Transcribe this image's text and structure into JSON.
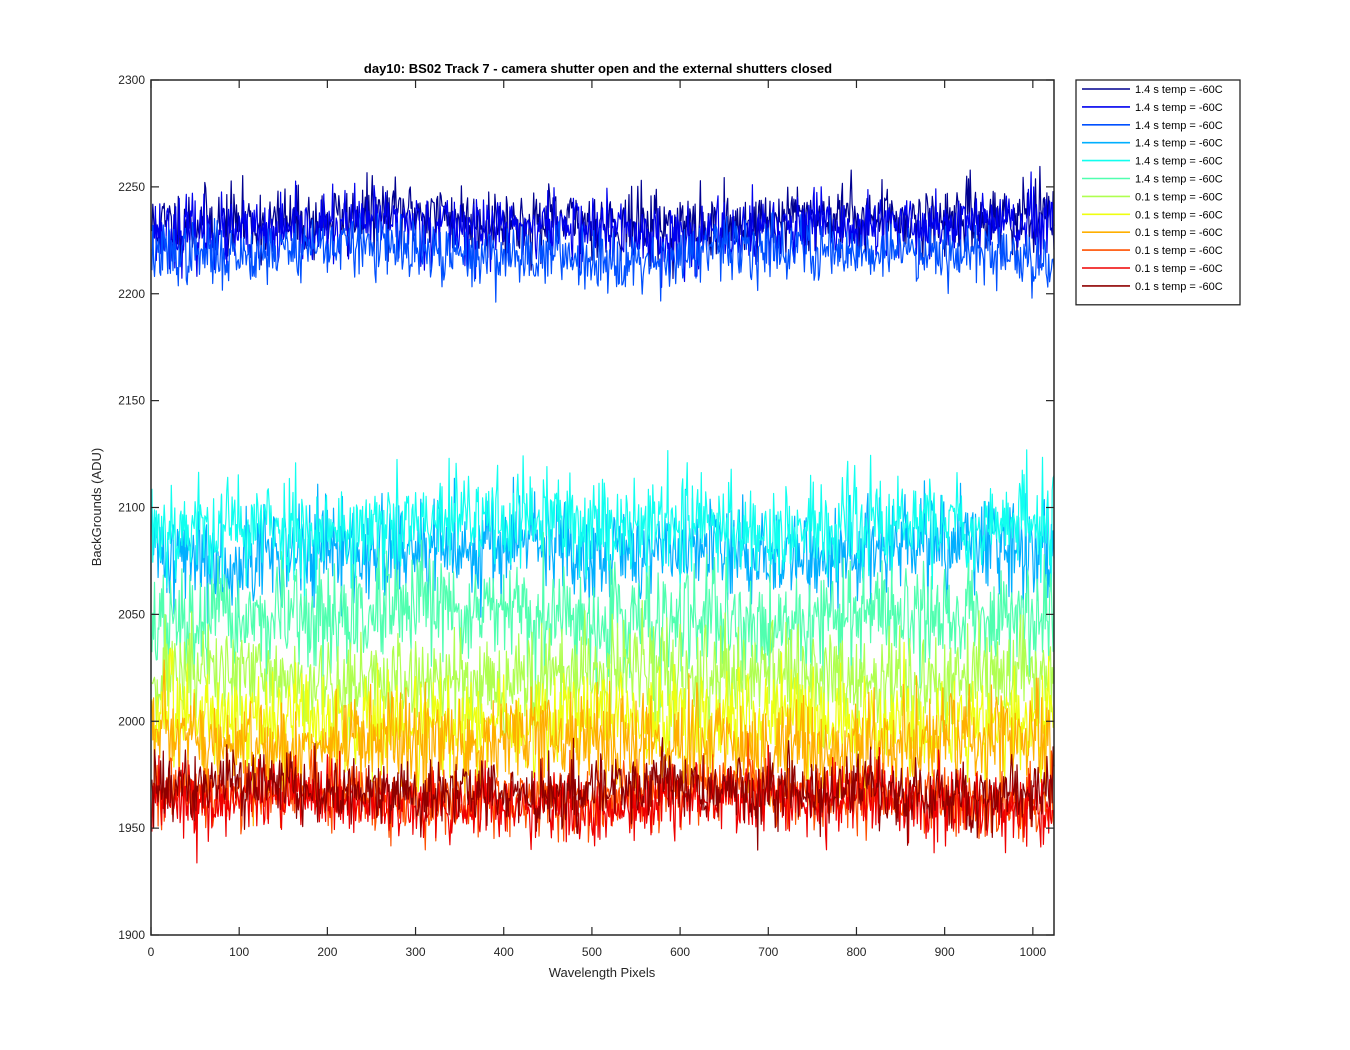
{
  "chart_data": {
    "type": "line",
    "title": "day10: BS02  Track 7 - camera shutter open and the external shutters closed",
    "xlabel": "Wavelength Pixels",
    "ylabel": "BackGrounds (ADU)",
    "xlim": [
      0,
      1024
    ],
    "ylim": [
      1900,
      2300
    ],
    "xticks": [
      0,
      100,
      200,
      300,
      400,
      500,
      600,
      700,
      800,
      900,
      1000
    ],
    "yticks": [
      1900,
      1950,
      2000,
      2050,
      2100,
      2150,
      2200,
      2250,
      2300
    ],
    "grid": false,
    "legend_position": "outside-top-right",
    "x": {
      "start": 1,
      "end": 1024,
      "step": 1
    },
    "series": [
      {
        "name": "1.4 s temp = -60C",
        "color": "#00008f",
        "mean": 2234,
        "noise": 8,
        "seed": 11
      },
      {
        "name": "1.4 s temp = -60C",
        "color": "#0000ef",
        "mean": 2230,
        "noise": 8,
        "seed": 23
      },
      {
        "name": "1.4 s temp = -60C",
        "color": "#0050ff",
        "mean": 2219,
        "noise": 7,
        "seed": 37
      },
      {
        "name": "1.4 s temp = -60C",
        "color": "#00afff",
        "mean": 2080,
        "noise": 12,
        "seed": 41
      },
      {
        "name": "1.4 s temp = -60C",
        "color": "#10ffef",
        "mean": 2092,
        "noise": 12,
        "seed": 53
      },
      {
        "name": "1.4 s temp = -60C",
        "color": "#50ffaf",
        "mean": 2048,
        "noise": 12,
        "seed": 67
      },
      {
        "name": "0.1 s temp = -60C",
        "color": "#afff50",
        "mean": 2020,
        "noise": 12,
        "seed": 71
      },
      {
        "name": "0.1 s temp = -60C",
        "color": "#efff10",
        "mean": 2000,
        "noise": 12,
        "seed": 83
      },
      {
        "name": "0.1 s temp = -60C",
        "color": "#ffaf00",
        "mean": 1990,
        "noise": 12,
        "seed": 97
      },
      {
        "name": "0.1 s temp = -60C",
        "color": "#ff5000",
        "mean": 1965,
        "noise": 8,
        "seed": 101
      },
      {
        "name": "0.1 s temp = -60C",
        "color": "#ef0000",
        "mean": 1962,
        "noise": 8,
        "seed": 113
      },
      {
        "name": "0.1 s temp = -60C",
        "color": "#8f0000",
        "mean": 1968,
        "noise": 8,
        "seed": 127
      }
    ]
  }
}
